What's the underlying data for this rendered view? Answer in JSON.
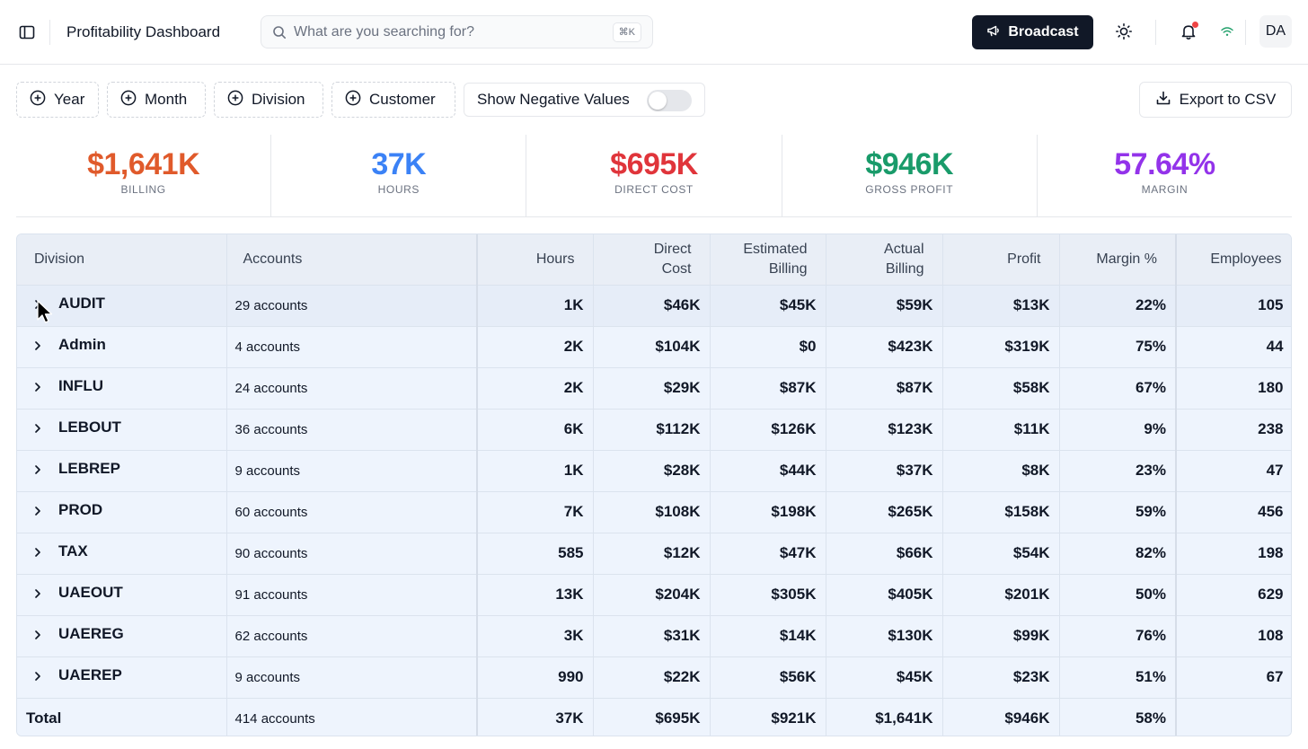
{
  "header": {
    "app_title": "Profitability Dashboard",
    "search_placeholder": "What are you searching for?",
    "search_value": "",
    "search_shortcut": "⌘K",
    "broadcast_label": "Broadcast",
    "avatar_initials": "DA",
    "icons": [
      "sidebar-toggle-icon",
      "search-icon",
      "megaphone-icon",
      "sun-icon",
      "bell-icon",
      "wifi-icon"
    ]
  },
  "filters": {
    "items": [
      {
        "label": "Year"
      },
      {
        "label": "Month"
      },
      {
        "label": "Division"
      },
      {
        "label": "Customer"
      }
    ],
    "negative_toggle_label": "Show Negative Values",
    "negative_toggle_on": false,
    "export_label": "Export to CSV"
  },
  "kpis": [
    {
      "value": "$1,641K",
      "label": "BILLING",
      "color": "#e05a2b"
    },
    {
      "value": "37K",
      "label": "HOURS",
      "color": "#3b82f6"
    },
    {
      "value": "$695K",
      "label": "DIRECT COST",
      "color": "#e0353b"
    },
    {
      "value": "$946K",
      "label": "GROSS PROFIT",
      "color": "#199b6a"
    },
    {
      "value": "57.64%",
      "label": "MARGIN",
      "color": "#9333ea"
    }
  ],
  "table": {
    "headers": {
      "division": "Division",
      "accounts": "Accounts",
      "hours": "Hours",
      "direct_cost_1": "Direct",
      "direct_cost_2": "Cost",
      "est_billing_1": "Estimated",
      "est_billing_2": "Billing",
      "act_billing_1": "Actual",
      "act_billing_2": "Billing",
      "profit": "Profit",
      "margin": "Margin %",
      "employees": "Employees"
    },
    "rows": [
      {
        "division": "AUDIT",
        "accounts": "29 accounts",
        "hours": "1K",
        "direct_cost": "$46K",
        "est_billing": "$45K",
        "act_billing": "$59K",
        "profit": "$13K",
        "margin": "22%",
        "employees": "105"
      },
      {
        "division": "Admin",
        "accounts": "4 accounts",
        "hours": "2K",
        "direct_cost": "$104K",
        "est_billing": "$0",
        "act_billing": "$423K",
        "profit": "$319K",
        "margin": "75%",
        "employees": "44"
      },
      {
        "division": "INFLU",
        "accounts": "24 accounts",
        "hours": "2K",
        "direct_cost": "$29K",
        "est_billing": "$87K",
        "act_billing": "$87K",
        "profit": "$58K",
        "margin": "67%",
        "employees": "180"
      },
      {
        "division": "LEBOUT",
        "accounts": "36 accounts",
        "hours": "6K",
        "direct_cost": "$112K",
        "est_billing": "$126K",
        "act_billing": "$123K",
        "profit": "$11K",
        "margin": "9%",
        "employees": "238"
      },
      {
        "division": "LEBREP",
        "accounts": "9 accounts",
        "hours": "1K",
        "direct_cost": "$28K",
        "est_billing": "$44K",
        "act_billing": "$37K",
        "profit": "$8K",
        "margin": "23%",
        "employees": "47"
      },
      {
        "division": "PROD",
        "accounts": "60 accounts",
        "hours": "7K",
        "direct_cost": "$108K",
        "est_billing": "$198K",
        "act_billing": "$265K",
        "profit": "$158K",
        "margin": "59%",
        "employees": "456"
      },
      {
        "division": "TAX",
        "accounts": "90 accounts",
        "hours": "585",
        "direct_cost": "$12K",
        "est_billing": "$47K",
        "act_billing": "$66K",
        "profit": "$54K",
        "margin": "82%",
        "employees": "198"
      },
      {
        "division": "UAEOUT",
        "accounts": "91 accounts",
        "hours": "13K",
        "direct_cost": "$204K",
        "est_billing": "$305K",
        "act_billing": "$405K",
        "profit": "$201K",
        "margin": "50%",
        "employees": "629"
      },
      {
        "division": "UAEREG",
        "accounts": "62 accounts",
        "hours": "3K",
        "direct_cost": "$31K",
        "est_billing": "$14K",
        "act_billing": "$130K",
        "profit": "$99K",
        "margin": "76%",
        "employees": "108"
      },
      {
        "division": "UAEREP",
        "accounts": "9 accounts",
        "hours": "990",
        "direct_cost": "$22K",
        "est_billing": "$56K",
        "act_billing": "$45K",
        "profit": "$23K",
        "margin": "51%",
        "employees": "67"
      }
    ],
    "total": {
      "label": "Total",
      "accounts": "414 accounts",
      "hours": "37K",
      "direct_cost": "$695K",
      "est_billing": "$921K",
      "act_billing": "$1,641K",
      "profit": "$946K",
      "margin": "58%",
      "employees": ""
    }
  }
}
